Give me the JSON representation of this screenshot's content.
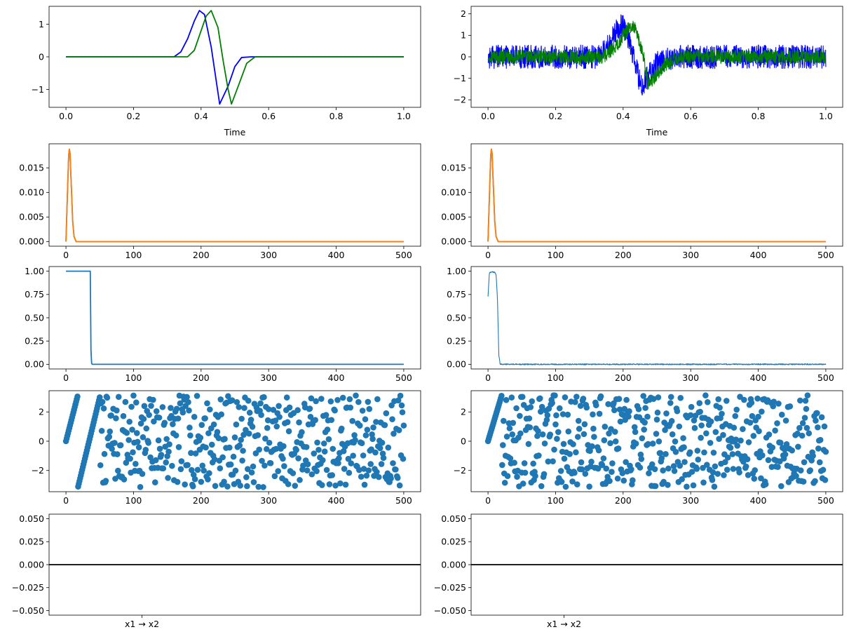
{
  "figure": {
    "colors": {
      "blue": "#0000ff",
      "green": "#008000",
      "orange": "#ff7f0e",
      "mpl_blue": "#1f77b4",
      "black": "#000000"
    }
  },
  "chart_data": [
    {
      "type": "line",
      "title": "",
      "xlabel": "Time",
      "ylabel": "",
      "xlim": [
        -0.05,
        1.05
      ],
      "ylim": [
        -1.55,
        1.55
      ],
      "xticks": [
        "0.0",
        "0.2",
        "0.4",
        "0.6",
        "0.8",
        "1.0"
      ],
      "yticks": [
        "−1",
        "0",
        "1"
      ],
      "series": [
        {
          "color": "#0000ff",
          "x": [
            0,
            0.32,
            0.34,
            0.36,
            0.38,
            0.395,
            0.41,
            0.43,
            0.455,
            0.48,
            0.5,
            0.52,
            0.55,
            1.0
          ],
          "y": [
            0,
            0,
            0.15,
            0.55,
            1.1,
            1.42,
            1.3,
            0.3,
            -1.45,
            -0.9,
            -0.3,
            -0.02,
            0,
            0
          ]
        },
        {
          "color": "#008000",
          "x": [
            0,
            0.36,
            0.38,
            0.4,
            0.415,
            0.43,
            0.45,
            0.465,
            0.48,
            0.49,
            0.51,
            0.535,
            0.56,
            1.0
          ],
          "y": [
            0,
            0,
            0.2,
            0.8,
            1.25,
            1.42,
            0.9,
            -0.1,
            -1.0,
            -1.45,
            -0.9,
            -0.2,
            0,
            0
          ]
        }
      ]
    },
    {
      "type": "line",
      "title": "",
      "xlabel": "Time",
      "ylabel": "",
      "xlim": [
        -0.05,
        1.05
      ],
      "ylim": [
        -2.35,
        2.35
      ],
      "xticks": [
        "0.0",
        "0.2",
        "0.4",
        "0.6",
        "0.8",
        "1.0"
      ],
      "yticks": [
        "−2",
        "−1",
        "0",
        "1",
        "2"
      ],
      "series": [
        {
          "color": "#0000ff",
          "noise": 0.55,
          "x": [
            0,
            0.32,
            0.35,
            0.38,
            0.395,
            0.41,
            0.43,
            0.455,
            0.47,
            0.5,
            0.55,
            1.0
          ],
          "y": [
            0,
            0,
            0.4,
            1.2,
            1.55,
            1.2,
            0,
            -1.5,
            -1.0,
            -0.3,
            0,
            0
          ]
        },
        {
          "color": "#008000",
          "noise": 0.32,
          "x": [
            0,
            0.34,
            0.38,
            0.41,
            0.425,
            0.44,
            0.46,
            0.475,
            0.49,
            0.52,
            0.57,
            1.0
          ],
          "y": [
            0,
            0,
            0.5,
            1.2,
            1.45,
            1.2,
            0,
            -1.2,
            -1.0,
            -0.4,
            0,
            0
          ]
        }
      ]
    },
    {
      "type": "line",
      "xlim": [
        -25,
        525
      ],
      "ylim": [
        -0.00095,
        0.0199
      ],
      "xticks": [
        "0",
        "100",
        "200",
        "300",
        "400",
        "500"
      ],
      "yticks": [
        "0.000",
        "0.005",
        "0.010",
        "0.015"
      ],
      "series": [
        {
          "color": "#1f77b4",
          "x": [
            0,
            2,
            4,
            5,
            6,
            8,
            10,
            12,
            15,
            500
          ],
          "y": [
            0,
            0.009,
            0.0175,
            0.0188,
            0.018,
            0.011,
            0.004,
            0.001,
            0,
            0
          ]
        },
        {
          "color": "#ff7f0e",
          "x": [
            0,
            2,
            4,
            5,
            6,
            8,
            10,
            12,
            15,
            500
          ],
          "y": [
            0,
            0.009,
            0.0175,
            0.0188,
            0.018,
            0.011,
            0.004,
            0.001,
            0,
            0
          ]
        }
      ]
    },
    {
      "type": "line",
      "xlim": [
        -25,
        525
      ],
      "ylim": [
        -0.00095,
        0.0199
      ],
      "xticks": [
        "0",
        "100",
        "200",
        "300",
        "400",
        "500"
      ],
      "yticks": [
        "0.000",
        "0.005",
        "0.010",
        "0.015"
      ],
      "series": [
        {
          "color": "#1f77b4",
          "x": [
            0,
            2,
            4,
            5,
            6,
            8,
            10,
            12,
            15,
            500
          ],
          "y": [
            0,
            0.009,
            0.0175,
            0.0188,
            0.018,
            0.011,
            0.004,
            0.001,
            0,
            0
          ]
        },
        {
          "color": "#ff7f0e",
          "x": [
            0,
            2,
            4,
            5,
            6,
            8,
            10,
            12,
            15,
            500
          ],
          "y": [
            0,
            0.009,
            0.0175,
            0.0188,
            0.018,
            0.011,
            0.004,
            0.001,
            0,
            0
          ]
        }
      ]
    },
    {
      "type": "line",
      "xlim": [
        -25,
        525
      ],
      "ylim": [
        -0.05,
        1.05
      ],
      "xticks": [
        "0",
        "100",
        "200",
        "300",
        "400",
        "500"
      ],
      "yticks": [
        "0.00",
        "0.25",
        "0.50",
        "0.75",
        "1.00"
      ],
      "series": [
        {
          "color": "#1f77b4",
          "x": [
            0,
            36,
            37,
            38,
            39,
            500
          ],
          "y": [
            1.0,
            1.0,
            0.15,
            0.01,
            0.0,
            0.0
          ]
        }
      ]
    },
    {
      "type": "line",
      "xlim": [
        -25,
        525
      ],
      "ylim": [
        -0.05,
        1.05
      ],
      "xticks": [
        "0",
        "100",
        "200",
        "300",
        "400",
        "500"
      ],
      "yticks": [
        "0.00",
        "0.25",
        "0.50",
        "0.75",
        "1.00"
      ],
      "series": [
        {
          "color": "#1f77b4",
          "noise": 0.006,
          "x": [
            0,
            2,
            4,
            10,
            12,
            14,
            16,
            18,
            500
          ],
          "y": [
            0.73,
            0.98,
            0.99,
            0.99,
            0.96,
            0.7,
            0.1,
            0.0,
            0.0
          ]
        }
      ]
    },
    {
      "type": "scatter",
      "xlim": [
        -25,
        525
      ],
      "ylim": [
        -3.45,
        3.45
      ],
      "xticks": [
        "0",
        "100",
        "200",
        "300",
        "400",
        "500"
      ],
      "yticks": [
        "−2",
        "0",
        "2"
      ],
      "series": [
        {
          "color": "#1f77b4",
          "x_max": 500,
          "ramps": [
            [
              0,
              17,
              0.0,
              3.05
            ],
            [
              18,
              50,
              -3.1,
              3.0
            ]
          ],
          "random_from": 51,
          "seed": 7
        }
      ]
    },
    {
      "type": "scatter",
      "xlim": [
        -25,
        525
      ],
      "ylim": [
        -3.45,
        3.45
      ],
      "xticks": [
        "0",
        "100",
        "200",
        "300",
        "400",
        "500"
      ],
      "yticks": [
        "−2",
        "0",
        "2"
      ],
      "series": [
        {
          "color": "#1f77b4",
          "x_max": 500,
          "ramps": [
            [
              0,
              20,
              0.0,
              3.1
            ]
          ],
          "random_from": 21,
          "seed": 13
        }
      ]
    },
    {
      "type": "line",
      "xlim": [
        0,
        1
      ],
      "ylim": [
        -0.055,
        0.055
      ],
      "xticks": [
        "x1 → x2"
      ],
      "yticks": [
        "−0.050",
        "−0.025",
        "0.000",
        "0.025",
        "0.050"
      ],
      "series": [
        {
          "color": "#000000",
          "x": [
            0,
            1
          ],
          "y": [
            0,
            0
          ]
        }
      ]
    },
    {
      "type": "line",
      "xlim": [
        0,
        1
      ],
      "ylim": [
        -0.055,
        0.055
      ],
      "xticks": [
        "x1 → x2"
      ],
      "yticks": [
        "−0.050",
        "−0.025",
        "0.000",
        "0.025",
        "0.050"
      ],
      "series": [
        {
          "color": "#000000",
          "x": [
            0,
            1
          ],
          "y": [
            0,
            0
          ]
        }
      ]
    }
  ]
}
